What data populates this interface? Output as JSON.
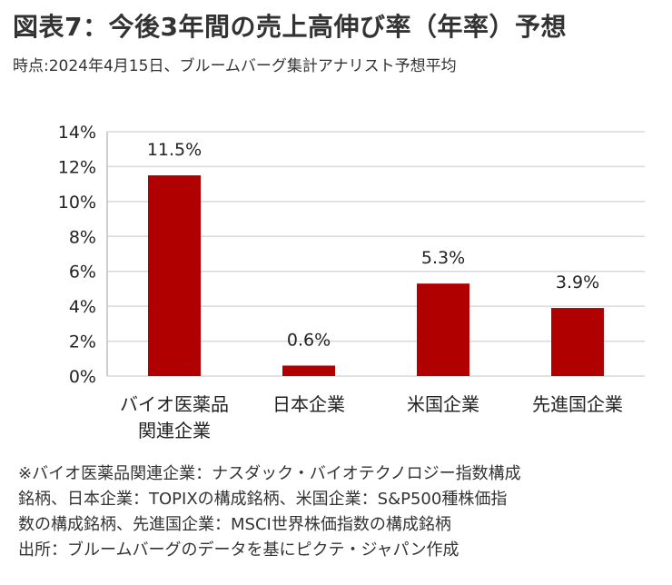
{
  "title": "図表7：今後3年間の売上高伸び率（年率）予想",
  "subtitle": "時点:2024年4月15日、ブルームバーグ集計アナリスト予想平均",
  "chart_data": {
    "type": "bar",
    "categories": [
      [
        "バイオ医薬品",
        "関連企業"
      ],
      [
        "日本企業"
      ],
      [
        "米国企業"
      ],
      [
        "先進国企業"
      ]
    ],
    "values": [
      11.5,
      0.6,
      5.3,
      3.9
    ],
    "data_labels": [
      "11.5%",
      "0.6%",
      "5.3%",
      "3.9%"
    ],
    "yticks": [
      "0%",
      "2%",
      "4%",
      "6%",
      "8%",
      "10%",
      "12%",
      "14%"
    ],
    "ylim": [
      0,
      14
    ],
    "grid": true,
    "bar_color": "#b00000",
    "grid_color": "#d9d9d9"
  },
  "notes": [
    "※バイオ医薬品関連企業：ナスダック・バイオテクノロジー指数構成",
    "銘柄、日本企業：TOPIXの構成銘柄、米国企業：S&P500種株価指",
    "数の構成銘柄、先進国企業：MSCI世界株価指数の構成銘柄",
    "出所：ブルームバーグのデータを基にピクテ・ジャパン作成"
  ]
}
